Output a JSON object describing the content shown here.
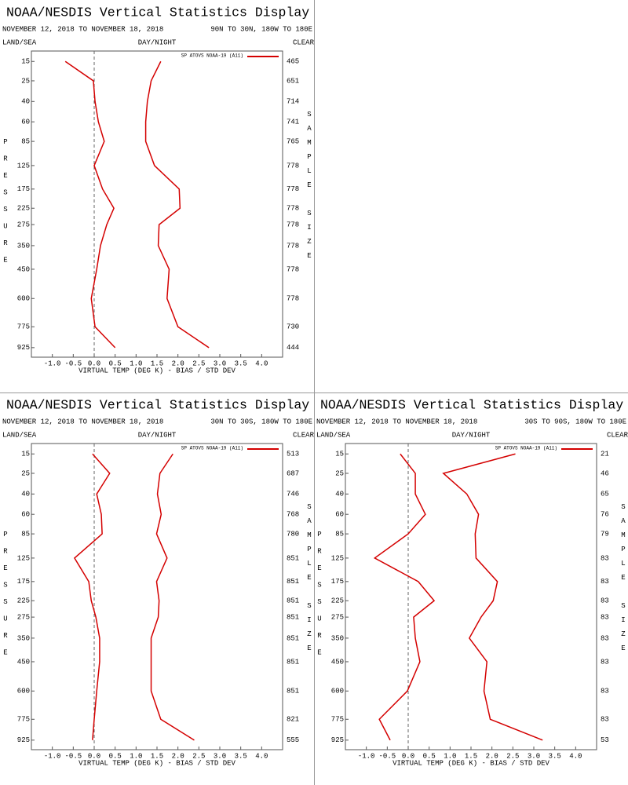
{
  "chart_data": [
    {
      "type": "line",
      "title": "NOAA/NESDIS Vertical Statistics Display",
      "subtitle": "NOVEMBER 12, 2018 TO NOVEMBER 18, 2018",
      "region": "90N TO 30N, 180W TO 180E",
      "land_sea": "LAND/SEA",
      "day_night": "DAY/NIGHT",
      "clear": "CLEAR",
      "legend": "SP ATOVS NOAA-19 (A11)",
      "ylabel": "PRESSURE",
      "y2label": "SAMPLE SIZE",
      "xlabel": "VIRTUAL TEMP (DEG K) - BIAS / STD DEV",
      "xlim": [
        -1.5,
        4.5
      ],
      "xticks": [
        {
          "value": -1,
          "label": "-1.0"
        },
        {
          "value": -0.5,
          "label": "-0.5"
        },
        {
          "value": 0,
          "label": "0.0"
        },
        {
          "value": 0.5,
          "label": "0.5"
        },
        {
          "value": 1,
          "label": "1.0"
        },
        {
          "value": 1.5,
          "label": "1.5"
        },
        {
          "value": 2,
          "label": "2.0"
        },
        {
          "value": 2.5,
          "label": "2.5"
        },
        {
          "value": 3,
          "label": "3.0"
        },
        {
          "value": 3.5,
          "label": "3.5"
        },
        {
          "value": 4,
          "label": "4.0"
        }
      ],
      "ylim": [
        11,
        1000
      ],
      "levels": [
        15,
        25,
        40,
        60,
        85,
        125,
        175,
        225,
        275,
        350,
        450,
        600,
        775,
        925
      ],
      "sample_size": [
        465,
        651,
        714,
        741,
        765,
        778,
        778,
        778,
        778,
        778,
        778,
        778,
        730,
        444
      ],
      "series": [
        {
          "color": "#d40000",
          "values": [
            -0.69,
            -0.02,
            0.02,
            0.1,
            0.24,
            0.0,
            0.2,
            0.47,
            0.3,
            0.15,
            0.06,
            -0.07,
            0.02,
            0.5
          ]
        },
        {
          "color": "#d40000",
          "values": [
            1.59,
            1.36,
            1.27,
            1.23,
            1.23,
            1.44,
            2.03,
            2.05,
            1.55,
            1.53,
            1.79,
            1.74,
            2.0,
            2.74
          ]
        }
      ]
    },
    {
      "type": "line",
      "title": "NOAA/NESDIS Vertical Statistics Display",
      "subtitle": "NOVEMBER 12, 2018 TO NOVEMBER 18, 2018",
      "region": "30N TO 30S, 180W TO 180E",
      "land_sea": "LAND/SEA",
      "day_night": "DAY/NIGHT",
      "clear": "CLEAR",
      "legend": "SP ATOVS NOAA-19 (A11)",
      "ylabel": "PRESSURE",
      "y2label": "SAMPLE SIZE",
      "xlabel": "VIRTUAL TEMP (DEG K) - BIAS / STD DEV",
      "xlim": [
        -1.5,
        4.5
      ],
      "xticks": [
        {
          "value": -1,
          "label": "-1.0"
        },
        {
          "value": -0.5,
          "label": "-0.5"
        },
        {
          "value": 0,
          "label": "0.0"
        },
        {
          "value": 0.5,
          "label": "0.5"
        },
        {
          "value": 1,
          "label": "1.0"
        },
        {
          "value": 1.5,
          "label": "1.5"
        },
        {
          "value": 2,
          "label": "2.0"
        },
        {
          "value": 2.5,
          "label": "2.5"
        },
        {
          "value": 3,
          "label": "3.0"
        },
        {
          "value": 3.5,
          "label": "3.5"
        },
        {
          "value": 4,
          "label": "4.0"
        }
      ],
      "ylim": [
        11,
        1000
      ],
      "levels": [
        15,
        25,
        40,
        60,
        85,
        125,
        175,
        225,
        275,
        350,
        450,
        600,
        775,
        925
      ],
      "sample_size": [
        513,
        687,
        746,
        768,
        780,
        851,
        851,
        851,
        851,
        851,
        851,
        851,
        821,
        555
      ],
      "series": [
        {
          "color": "#d40000",
          "values": [
            -0.04,
            0.37,
            0.06,
            0.17,
            0.19,
            -0.47,
            -0.13,
            -0.07,
            0.04,
            0.13,
            0.13,
            0.06,
            0.0,
            -0.04
          ]
        },
        {
          "color": "#d40000",
          "values": [
            1.88,
            1.57,
            1.51,
            1.6,
            1.49,
            1.74,
            1.49,
            1.55,
            1.53,
            1.36,
            1.36,
            1.36,
            1.59,
            2.39
          ]
        }
      ]
    },
    {
      "type": "line",
      "title": "NOAA/NESDIS Vertical Statistics Display",
      "subtitle": "NOVEMBER 12, 2018 TO NOVEMBER 18, 2018",
      "region": "30S TO 90S, 180W TO 180E",
      "land_sea": "LAND/SEA",
      "day_night": "DAY/NIGHT",
      "clear": "CLEAR",
      "legend": "SP ATOVS NOAA-19 (A11)",
      "ylabel": "PRESSURE",
      "y2label": "SAMPLE SIZE",
      "xlabel": "VIRTUAL TEMP (DEG K) - BIAS / STD DEV",
      "xlim": [
        -1.5,
        4.5
      ],
      "xticks": [
        {
          "value": -1,
          "label": "-1.0"
        },
        {
          "value": -0.5,
          "label": "-0.5"
        },
        {
          "value": 0,
          "label": "0.0"
        },
        {
          "value": 0.5,
          "label": "0.5"
        },
        {
          "value": 1,
          "label": "1.0"
        },
        {
          "value": 1.5,
          "label": "1.5"
        },
        {
          "value": 2,
          "label": "2.0"
        },
        {
          "value": 2.5,
          "label": "2.5"
        },
        {
          "value": 3,
          "label": "3.0"
        },
        {
          "value": 3.5,
          "label": "3.5"
        },
        {
          "value": 4,
          "label": "4.0"
        }
      ],
      "ylim": [
        11,
        1000
      ],
      "levels": [
        15,
        25,
        40,
        60,
        85,
        125,
        175,
        225,
        275,
        350,
        450,
        600,
        775,
        925
      ],
      "sample_size": [
        21,
        46,
        65,
        76,
        79,
        83,
        83,
        83,
        83,
        83,
        83,
        83,
        83,
        53
      ],
      "series": [
        {
          "color": "#d40000",
          "values": [
            -0.19,
            0.17,
            0.17,
            0.41,
            0.0,
            -0.8,
            0.24,
            0.62,
            0.13,
            0.17,
            0.28,
            -0.02,
            -0.69,
            -0.43
          ]
        },
        {
          "color": "#d40000",
          "values": [
            2.56,
            0.84,
            1.4,
            1.68,
            1.6,
            1.62,
            2.13,
            2.03,
            1.74,
            1.46,
            1.88,
            1.81,
            1.96,
            3.21
          ]
        }
      ]
    }
  ]
}
